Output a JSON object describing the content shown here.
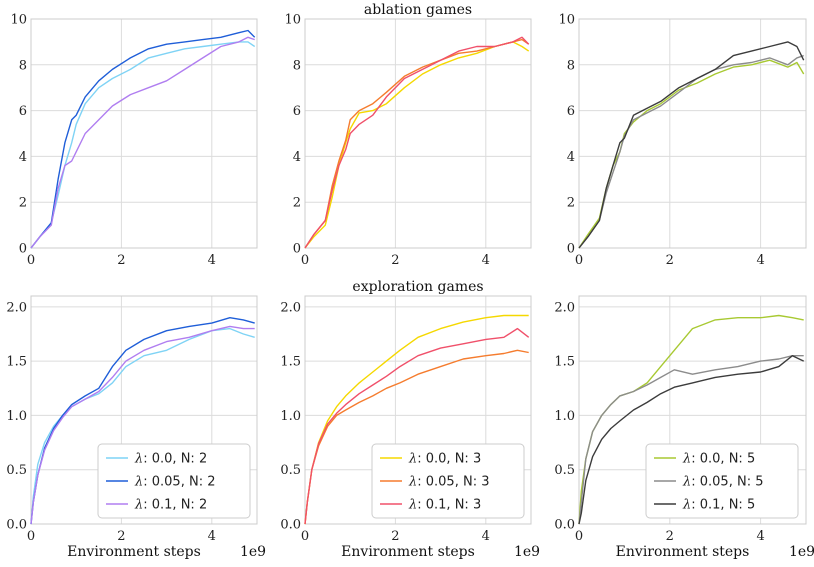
{
  "chart_data": [
    {
      "type": "line",
      "row_title": "ablation games",
      "xlabel": "",
      "x_exponent": "",
      "xlim": [
        0,
        5
      ],
      "ylim": [
        0,
        10
      ],
      "xticks": [
        0,
        2,
        4
      ],
      "yticks": [
        0,
        2,
        4,
        6,
        8,
        10
      ],
      "ytick_labels": [
        "0",
        "2",
        "4",
        "6",
        "8",
        "10"
      ],
      "legend": false,
      "series": [
        {
          "name": "λ: 0.0, N: 2",
          "lambda": "0.0",
          "N": "2",
          "color": "#7fd3f5",
          "x": [
            0,
            0.2,
            0.45,
            0.6,
            0.75,
            0.9,
            1.0,
            1.2,
            1.5,
            1.8,
            2.2,
            2.6,
            3.0,
            3.4,
            3.8,
            4.2,
            4.6,
            4.8,
            4.95
          ],
          "y": [
            0,
            0.5,
            1.1,
            2.3,
            3.6,
            4.6,
            5.4,
            6.3,
            7.0,
            7.4,
            7.8,
            8.3,
            8.5,
            8.7,
            8.8,
            8.9,
            9.0,
            9.0,
            8.8
          ]
        },
        {
          "name": "λ: 0.05, N: 2",
          "lambda": "0.05",
          "N": "2",
          "color": "#1f5ed8",
          "x": [
            0,
            0.2,
            0.45,
            0.6,
            0.75,
            0.9,
            1.0,
            1.2,
            1.5,
            1.8,
            2.2,
            2.6,
            3.0,
            3.4,
            3.8,
            4.2,
            4.6,
            4.8,
            4.95
          ],
          "y": [
            0,
            0.5,
            1.1,
            3.0,
            4.6,
            5.6,
            5.8,
            6.6,
            7.3,
            7.8,
            8.3,
            8.7,
            8.9,
            9.0,
            9.1,
            9.2,
            9.4,
            9.5,
            9.2
          ]
        },
        {
          "name": "λ: 0.1, N: 2",
          "lambda": "0.1",
          "N": "2",
          "color": "#b07ef0",
          "x": [
            0,
            0.2,
            0.45,
            0.6,
            0.75,
            0.9,
            1.0,
            1.2,
            1.5,
            1.8,
            2.2,
            2.6,
            3.0,
            3.4,
            3.8,
            4.2,
            4.6,
            4.8,
            4.95
          ],
          "y": [
            0,
            0.5,
            1.0,
            2.6,
            3.6,
            3.8,
            4.2,
            5.0,
            5.6,
            6.2,
            6.7,
            7.0,
            7.3,
            7.8,
            8.3,
            8.8,
            9.0,
            9.2,
            9.1
          ]
        }
      ]
    },
    {
      "type": "line",
      "row_title": "",
      "xlabel": "",
      "x_exponent": "",
      "xlim": [
        0,
        5
      ],
      "ylim": [
        0,
        10
      ],
      "xticks": [
        0,
        2,
        4
      ],
      "yticks": [
        0,
        2,
        4,
        6,
        8,
        10
      ],
      "ytick_labels": [
        "0",
        "2",
        "4",
        "6",
        "8",
        "10"
      ],
      "legend": false,
      "series": [
        {
          "name": "λ: 0.0, N: 3",
          "lambda": "0.0",
          "N": "3",
          "color": "#f5d800",
          "x": [
            0,
            0.2,
            0.45,
            0.6,
            0.75,
            0.9,
            1.0,
            1.2,
            1.5,
            1.8,
            2.2,
            2.6,
            3.0,
            3.4,
            3.8,
            4.2,
            4.6,
            4.8,
            4.95
          ],
          "y": [
            0,
            0.5,
            1.0,
            2.2,
            3.6,
            4.6,
            5.2,
            5.9,
            6.0,
            6.3,
            7.0,
            7.6,
            8.0,
            8.3,
            8.5,
            8.8,
            9.0,
            8.8,
            8.6
          ]
        },
        {
          "name": "λ: 0.05, N: 3",
          "lambda": "0.05",
          "N": "3",
          "color": "#f57c2e",
          "x": [
            0,
            0.2,
            0.45,
            0.6,
            0.75,
            0.9,
            1.0,
            1.2,
            1.5,
            1.8,
            2.2,
            2.6,
            3.0,
            3.4,
            3.8,
            4.2,
            4.6,
            4.8,
            4.95
          ],
          "y": [
            0,
            0.6,
            1.2,
            2.7,
            3.8,
            4.7,
            5.6,
            6.0,
            6.3,
            6.8,
            7.5,
            7.9,
            8.2,
            8.5,
            8.6,
            8.8,
            9.0,
            9.1,
            8.9
          ]
        },
        {
          "name": "λ: 0.1, N: 3",
          "lambda": "0.1",
          "N": "3",
          "color": "#f0506a",
          "x": [
            0,
            0.2,
            0.45,
            0.6,
            0.75,
            0.9,
            1.0,
            1.2,
            1.5,
            1.8,
            2.2,
            2.6,
            3.0,
            3.4,
            3.8,
            4.2,
            4.6,
            4.8,
            4.95
          ],
          "y": [
            0,
            0.6,
            1.2,
            2.5,
            3.6,
            4.3,
            5.0,
            5.4,
            5.8,
            6.6,
            7.4,
            7.8,
            8.2,
            8.6,
            8.8,
            8.8,
            9.0,
            9.2,
            8.9
          ]
        }
      ]
    },
    {
      "type": "line",
      "row_title": "",
      "xlabel": "",
      "x_exponent": "",
      "xlim": [
        0,
        5
      ],
      "ylim": [
        0,
        10
      ],
      "xticks": [
        0,
        2,
        4
      ],
      "yticks": [
        0,
        2,
        4,
        6,
        8,
        10
      ],
      "ytick_labels": [
        "0",
        "2",
        "4",
        "6",
        "8",
        "10"
      ],
      "legend": false,
      "series": [
        {
          "name": "λ: 0.0, N: 5",
          "lambda": "0.0",
          "N": "5",
          "color": "#a8c932",
          "x": [
            0,
            0.2,
            0.45,
            0.6,
            0.75,
            0.9,
            1.0,
            1.2,
            1.5,
            1.8,
            2.2,
            2.6,
            3.0,
            3.4,
            3.8,
            4.2,
            4.6,
            4.8,
            4.95
          ],
          "y": [
            0,
            0.6,
            1.3,
            2.6,
            3.6,
            4.2,
            5.0,
            5.5,
            6.0,
            6.3,
            6.9,
            7.2,
            7.6,
            7.9,
            8.0,
            8.2,
            7.9,
            8.1,
            7.6
          ]
        },
        {
          "name": "λ: 0.05, N: 5",
          "lambda": "0.05",
          "N": "5",
          "color": "#8c8c8c",
          "x": [
            0,
            0.2,
            0.45,
            0.6,
            0.75,
            0.9,
            1.0,
            1.2,
            1.5,
            1.8,
            2.2,
            2.6,
            3.0,
            3.4,
            3.8,
            4.2,
            4.6,
            4.8,
            4.95
          ],
          "y": [
            0,
            0.5,
            1.2,
            2.4,
            3.3,
            4.2,
            4.9,
            5.6,
            5.9,
            6.2,
            6.8,
            7.4,
            7.8,
            8.0,
            8.1,
            8.3,
            8.0,
            8.3,
            8.4
          ]
        },
        {
          "name": "λ: 0.1, N: 5",
          "lambda": "0.1",
          "N": "5",
          "color": "#3c3c3c",
          "x": [
            0,
            0.2,
            0.45,
            0.6,
            0.75,
            0.9,
            1.0,
            1.2,
            1.5,
            1.8,
            2.2,
            2.6,
            3.0,
            3.4,
            3.8,
            4.2,
            4.6,
            4.8,
            4.95
          ],
          "y": [
            0,
            0.5,
            1.2,
            2.6,
            3.6,
            4.6,
            4.8,
            5.8,
            6.1,
            6.4,
            7.0,
            7.4,
            7.8,
            8.4,
            8.6,
            8.8,
            9.0,
            8.8,
            8.2
          ]
        }
      ]
    },
    {
      "type": "line",
      "row_title": "exploration games",
      "xlabel": "Environment steps",
      "x_exponent": "1e9",
      "xlim": [
        0,
        5
      ],
      "ylim": [
        0,
        2.1
      ],
      "xticks": [
        0,
        2,
        4
      ],
      "yticks": [
        0,
        0.5,
        1.0,
        1.5,
        2.0
      ],
      "ytick_labels": [
        "0.0",
        "0.5",
        "1.0",
        "1.5",
        "2.0"
      ],
      "legend": true,
      "series": [
        {
          "name": "λ: 0.0, N: 2",
          "lambda": "0.0",
          "N": "2",
          "color": "#7fd3f5",
          "x": [
            0,
            0.05,
            0.15,
            0.3,
            0.5,
            0.7,
            0.9,
            1.2,
            1.5,
            1.8,
            2.1,
            2.5,
            3.0,
            3.5,
            4.0,
            4.4,
            4.7,
            4.95
          ],
          "y": [
            0,
            0.25,
            0.55,
            0.75,
            0.9,
            1.0,
            1.08,
            1.15,
            1.2,
            1.3,
            1.45,
            1.55,
            1.6,
            1.7,
            1.78,
            1.8,
            1.75,
            1.72
          ]
        },
        {
          "name": "λ: 0.05, N: 2",
          "lambda": "0.05",
          "N": "2",
          "color": "#1f5ed8",
          "x": [
            0,
            0.05,
            0.15,
            0.3,
            0.5,
            0.7,
            0.9,
            1.2,
            1.5,
            1.8,
            2.1,
            2.5,
            3.0,
            3.5,
            4.0,
            4.4,
            4.7,
            4.95
          ],
          "y": [
            0,
            0.2,
            0.45,
            0.7,
            0.88,
            1.0,
            1.1,
            1.18,
            1.25,
            1.45,
            1.6,
            1.7,
            1.78,
            1.82,
            1.85,
            1.9,
            1.88,
            1.85
          ]
        },
        {
          "name": "λ: 0.1, N: 2",
          "lambda": "0.1",
          "N": "2",
          "color": "#b07ef0",
          "x": [
            0,
            0.05,
            0.15,
            0.3,
            0.5,
            0.7,
            0.9,
            1.2,
            1.5,
            1.8,
            2.1,
            2.5,
            3.0,
            3.5,
            4.0,
            4.4,
            4.7,
            4.95
          ],
          "y": [
            0,
            0.2,
            0.45,
            0.68,
            0.86,
            0.98,
            1.08,
            1.15,
            1.22,
            1.35,
            1.5,
            1.6,
            1.68,
            1.72,
            1.78,
            1.82,
            1.8,
            1.8
          ]
        }
      ]
    },
    {
      "type": "line",
      "row_title": "",
      "xlabel": "Environment steps",
      "x_exponent": "1e9",
      "xlim": [
        0,
        5
      ],
      "ylim": [
        0,
        2.1
      ],
      "xticks": [
        0,
        2,
        4
      ],
      "yticks": [
        0,
        0.5,
        1.0,
        1.5,
        2.0
      ],
      "ytick_labels": [
        "0.0",
        "0.5",
        "1.0",
        "1.5",
        "2.0"
      ],
      "legend": true,
      "series": [
        {
          "name": "λ: 0.0, N: 3",
          "lambda": "0.0",
          "N": "3",
          "color": "#f5d800",
          "x": [
            0,
            0.05,
            0.15,
            0.3,
            0.5,
            0.7,
            0.9,
            1.2,
            1.5,
            1.8,
            2.1,
            2.5,
            3.0,
            3.5,
            4.0,
            4.4,
            4.7,
            4.95
          ],
          "y": [
            0,
            0.2,
            0.5,
            0.75,
            0.95,
            1.08,
            1.18,
            1.3,
            1.4,
            1.5,
            1.6,
            1.72,
            1.8,
            1.86,
            1.9,
            1.92,
            1.92,
            1.92
          ]
        },
        {
          "name": "λ: 0.05, N: 3",
          "lambda": "0.05",
          "N": "3",
          "color": "#f57c2e",
          "x": [
            0,
            0.05,
            0.15,
            0.3,
            0.5,
            0.7,
            0.9,
            1.2,
            1.5,
            1.8,
            2.1,
            2.5,
            3.0,
            3.5,
            4.0,
            4.4,
            4.7,
            4.95
          ],
          "y": [
            0,
            0.2,
            0.5,
            0.72,
            0.9,
            1.0,
            1.05,
            1.12,
            1.18,
            1.25,
            1.3,
            1.38,
            1.45,
            1.52,
            1.55,
            1.57,
            1.6,
            1.58
          ]
        },
        {
          "name": "λ: 0.1, N: 3",
          "lambda": "0.1",
          "N": "3",
          "color": "#f0506a",
          "x": [
            0,
            0.05,
            0.15,
            0.3,
            0.5,
            0.7,
            0.9,
            1.2,
            1.5,
            1.8,
            2.1,
            2.5,
            3.0,
            3.5,
            4.0,
            4.4,
            4.7,
            4.95
          ],
          "y": [
            0,
            0.2,
            0.5,
            0.74,
            0.92,
            1.02,
            1.1,
            1.2,
            1.28,
            1.36,
            1.45,
            1.55,
            1.62,
            1.66,
            1.7,
            1.72,
            1.8,
            1.72
          ]
        }
      ]
    },
    {
      "type": "line",
      "row_title": "",
      "xlabel": "Environment steps",
      "x_exponent": "1e9",
      "xlim": [
        0,
        5
      ],
      "ylim": [
        0,
        2.1
      ],
      "xticks": [
        0,
        2,
        4
      ],
      "yticks": [
        0,
        0.5,
        1.0,
        1.5,
        2.0
      ],
      "ytick_labels": [
        "0.0",
        "0.5",
        "1.0",
        "1.5",
        "2.0"
      ],
      "legend": true,
      "series": [
        {
          "name": "λ: 0.0, N: 5",
          "lambda": "0.0",
          "N": "5",
          "color": "#a8c932",
          "x": [
            0,
            0.05,
            0.15,
            0.3,
            0.5,
            0.7,
            0.9,
            1.2,
            1.5,
            1.8,
            2.1,
            2.5,
            3.0,
            3.5,
            4.0,
            4.4,
            4.7,
            4.95
          ],
          "y": [
            0,
            0.3,
            0.6,
            0.85,
            1.0,
            1.1,
            1.18,
            1.22,
            1.3,
            1.45,
            1.6,
            1.8,
            1.88,
            1.9,
            1.9,
            1.92,
            1.9,
            1.88
          ]
        },
        {
          "name": "λ: 0.05, N: 5",
          "lambda": "0.05",
          "N": "5",
          "color": "#8c8c8c",
          "x": [
            0,
            0.05,
            0.15,
            0.3,
            0.5,
            0.7,
            0.9,
            1.2,
            1.5,
            1.8,
            2.1,
            2.5,
            3.0,
            3.5,
            4.0,
            4.4,
            4.7,
            4.95
          ],
          "y": [
            0,
            0.2,
            0.6,
            0.85,
            1.0,
            1.1,
            1.18,
            1.22,
            1.28,
            1.35,
            1.42,
            1.38,
            1.42,
            1.45,
            1.5,
            1.52,
            1.55,
            1.55
          ]
        },
        {
          "name": "λ: 0.1, N: 5",
          "lambda": "0.1",
          "N": "5",
          "color": "#3c3c3c",
          "x": [
            0,
            0.05,
            0.15,
            0.3,
            0.5,
            0.7,
            0.9,
            1.2,
            1.5,
            1.8,
            2.1,
            2.5,
            3.0,
            3.5,
            4.0,
            4.4,
            4.7,
            4.95
          ],
          "y": [
            0,
            0.1,
            0.4,
            0.62,
            0.78,
            0.88,
            0.95,
            1.05,
            1.12,
            1.2,
            1.26,
            1.3,
            1.35,
            1.38,
            1.4,
            1.45,
            1.55,
            1.5
          ]
        }
      ]
    }
  ]
}
